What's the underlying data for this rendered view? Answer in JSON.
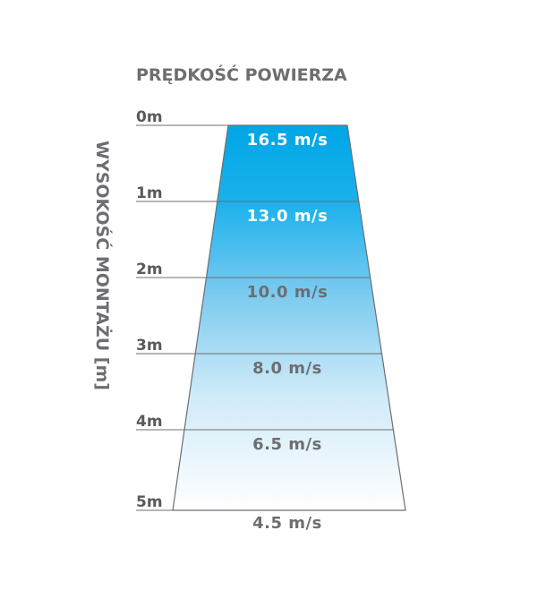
{
  "title": "PRĘDKOŚĆ POWIERZA",
  "axis_title": "WYSOKOŚĆ MONTAŻU [m]",
  "heights": [
    "0m",
    "1m",
    "2m",
    "3m",
    "4m",
    "5m"
  ],
  "speeds": [
    {
      "label": "16.5 m/s",
      "color": "#ffffff"
    },
    {
      "label": "13.0 m/s",
      "color": "#ffffff"
    },
    {
      "label": "10.0 m/s",
      "color": "#6d6e71"
    },
    {
      "label": "8.0 m/s",
      "color": "#6d6e71"
    },
    {
      "label": "6.5 m/s",
      "color": "#6d6e71"
    },
    {
      "label": "4.5 m/s",
      "color": "#6d6e71"
    }
  ],
  "colors": {
    "gradient_top": "#00a6e6",
    "gradient_mid": "#7fccf0",
    "gradient_bottom": "#ffffff",
    "text": "#6d6e71"
  }
}
